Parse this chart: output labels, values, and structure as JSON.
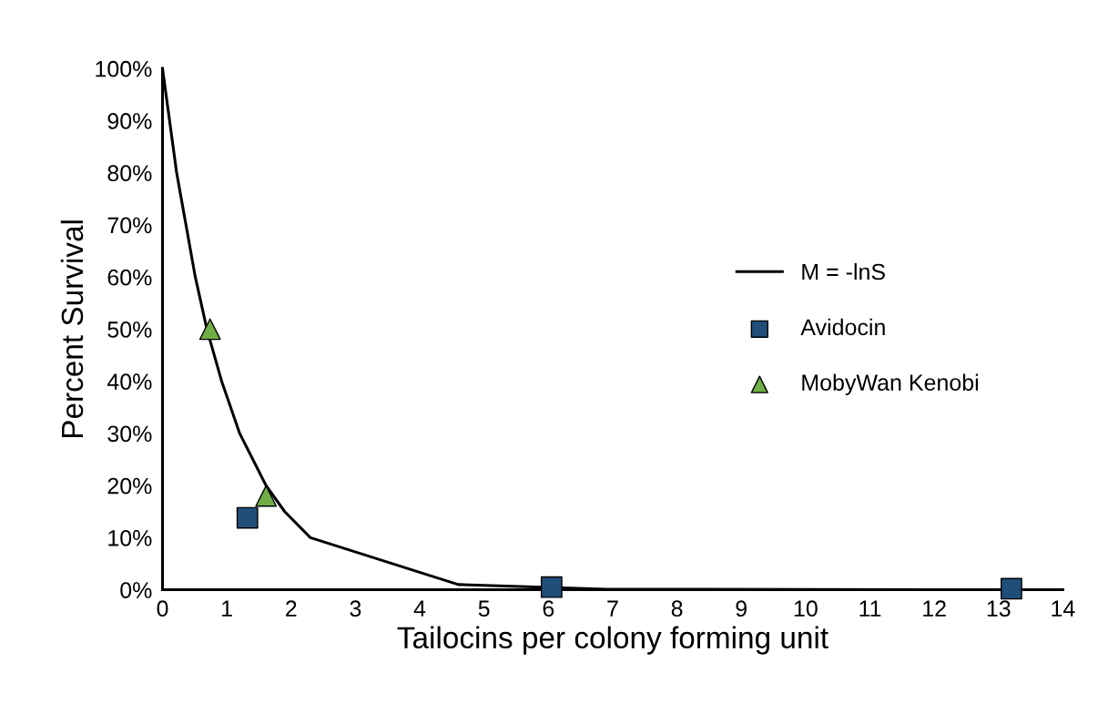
{
  "chart_data": {
    "type": "line",
    "xlabel": "Tailocins per colony forming unit",
    "ylabel": "Percent Survival",
    "xlim": [
      0,
      14
    ],
    "xticks": [
      0,
      1,
      2,
      3,
      4,
      5,
      6,
      7,
      8,
      9,
      10,
      11,
      12,
      13,
      14
    ],
    "ylim": [
      0,
      100
    ],
    "yticks": [
      {
        "value": 0,
        "label": "0%"
      },
      {
        "value": 10,
        "label": "10%"
      },
      {
        "value": 20,
        "label": "20%"
      },
      {
        "value": 30,
        "label": "30%"
      },
      {
        "value": 40,
        "label": "40%"
      },
      {
        "value": 50,
        "label": "50%"
      },
      {
        "value": 60,
        "label": "60%"
      },
      {
        "value": 70,
        "label": "70%"
      },
      {
        "value": 80,
        "label": "80%"
      },
      {
        "value": 90,
        "label": "90%"
      },
      {
        "value": 100,
        "label": "100%"
      }
    ],
    "grid": false,
    "legend": "right",
    "series": [
      {
        "name": "M = -lnS",
        "color": "#000000",
        "marker": "none",
        "x": [
          0,
          0.22,
          0.51,
          0.69,
          0.92,
          1.2,
          1.61,
          1.9,
          2.3,
          4.6,
          6.9,
          14
        ],
        "values": [
          100,
          80,
          60,
          50,
          40,
          30,
          20,
          15,
          10,
          1,
          0.1,
          0
        ]
      },
      {
        "name": "Avidocin",
        "type": "scatter",
        "color": "#1f4e79",
        "marker": "square",
        "x": [
          1.32,
          6.05,
          13.2
        ],
        "values": [
          13.8,
          0.5,
          0.2
        ]
      },
      {
        "name": "MobyWan Kenobi",
        "type": "scatter",
        "color": "#70ad47",
        "marker": "triangle",
        "x": [
          0.74,
          1.61
        ],
        "values": [
          50,
          18
        ]
      }
    ]
  }
}
